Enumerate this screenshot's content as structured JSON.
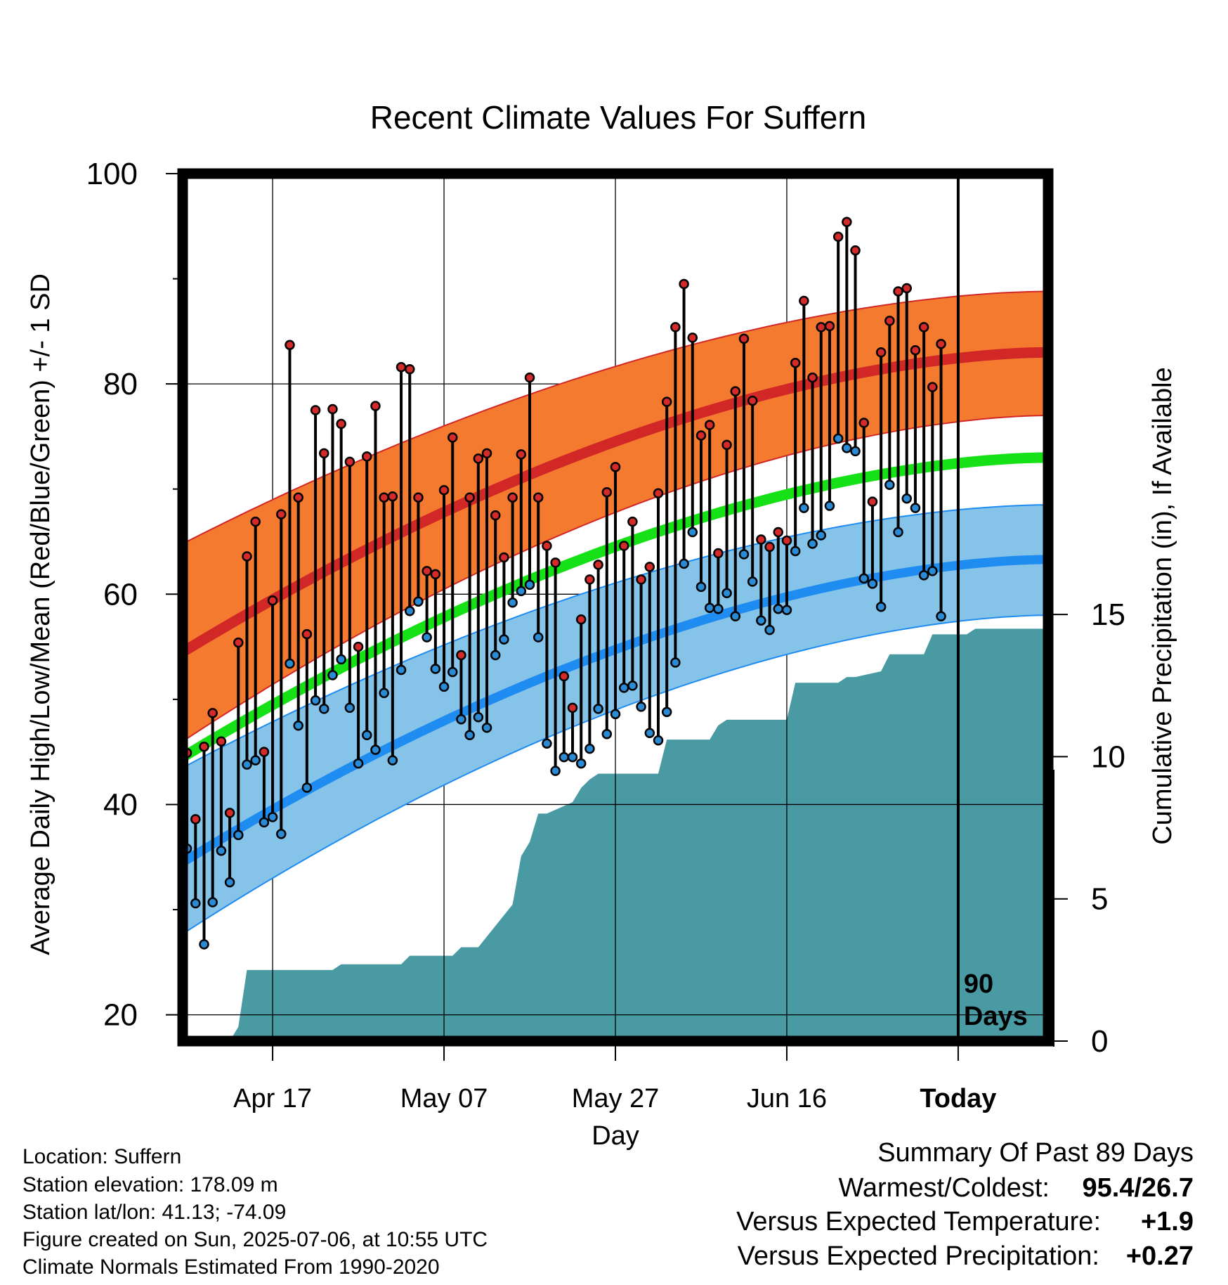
{
  "chart_data": {
    "type": "line",
    "title": "Recent Climate Values For Suffern",
    "xlabel": "Day",
    "ylabel": "Average Daily High/Low/Mean (Red/Blue/Green) +/- 1 SD",
    "y2label": "Cumulative Precipitation (in), If Available",
    "xlim": [
      -10.5,
      90.5
    ],
    "ylim": [
      17.5,
      100
    ],
    "y2lim": [
      0,
      30.5
    ],
    "yticks": [
      "20",
      "40",
      "60",
      "80",
      "100"
    ],
    "y2ticks": [
      "0",
      "5",
      "10",
      "15"
    ],
    "xticks": [
      {
        "x": 0,
        "label": "Apr 17"
      },
      {
        "x": 20,
        "label": "May 07"
      },
      {
        "x": 40,
        "label": "May 27"
      },
      {
        "x": 60,
        "label": "Jun 16"
      },
      {
        "x": 80,
        "label": "Today",
        "bold": true
      }
    ],
    "today_marker": {
      "x": 80,
      "label_line1": "90",
      "label_line2": "Days"
    },
    "grid": true,
    "colors": {
      "high_band": "#f47a30",
      "high_line": "#d22727",
      "mean_line": "#16e016",
      "low_band": "#86c3e9",
      "low_line": "#1e8cf0",
      "precip": "#4a9aa3",
      "high_dot": "#d42a2a",
      "low_dot": "#2a8ad4",
      "warm_value": "#d42a2a",
      "precip_value": "#1ec81e"
    },
    "normals": {
      "x_start": -10.5,
      "x_end": 90.5,
      "high_mean": [
        54.5,
        83.0
      ],
      "high_upper": [
        64.8,
        88.8
      ],
      "high_lower": [
        46.0,
        77.0
      ],
      "mean": [
        44.5,
        73.0
      ],
      "low_mean": [
        34.5,
        63.3
      ],
      "low_upper": [
        43.5,
        68.5
      ],
      "low_lower": [
        27.7,
        58.0
      ]
    },
    "series": [
      {
        "name": "High",
        "x_start": -10,
        "values": [
          44.9,
          38.6,
          45.5,
          48.7,
          46.0,
          39.2,
          55.4,
          63.6,
          66.9,
          45.0,
          59.4,
          67.6,
          83.7,
          69.2,
          56.2,
          77.5,
          73.4,
          77.6,
          76.2,
          72.6,
          55.0,
          73.1,
          77.9,
          69.2,
          69.3,
          81.6,
          81.4,
          69.2,
          62.2,
          61.9,
          69.9,
          74.9,
          54.2,
          69.2,
          72.9,
          73.4,
          67.5,
          63.5,
          69.2,
          73.3,
          80.6,
          69.2,
          64.6,
          63.0,
          52.2,
          49.2,
          57.6,
          61.4,
          62.8,
          69.7,
          72.1,
          64.6,
          66.9,
          61.4,
          62.6,
          69.6,
          78.3,
          85.4,
          89.5,
          84.4,
          75.1,
          76.1,
          63.9,
          74.2,
          79.3,
          84.3,
          78.4,
          65.2,
          64.5,
          65.9,
          65.1,
          82.0,
          87.9,
          80.6,
          85.4,
          85.5,
          94.0,
          95.4,
          92.7,
          76.3,
          68.8,
          83.0,
          86.0,
          88.8,
          89.1,
          83.2,
          85.4,
          79.7,
          83.8
        ]
      },
      {
        "name": "Low",
        "x_start": -10,
        "values": [
          35.8,
          30.6,
          26.7,
          30.7,
          35.6,
          32.6,
          37.1,
          43.8,
          44.2,
          38.3,
          38.8,
          37.2,
          53.4,
          47.5,
          41.6,
          49.9,
          49.1,
          52.3,
          53.8,
          49.2,
          43.9,
          46.6,
          45.2,
          50.6,
          44.2,
          52.8,
          58.4,
          59.3,
          55.9,
          52.9,
          51.2,
          52.6,
          48.1,
          46.6,
          48.3,
          47.3,
          54.2,
          55.7,
          59.2,
          60.3,
          60.9,
          55.9,
          45.8,
          43.2,
          44.5,
          44.5,
          43.9,
          45.3,
          49.1,
          46.7,
          48.6,
          51.1,
          51.3,
          49.3,
          46.8,
          46.1,
          48.8,
          53.5,
          62.9,
          65.9,
          60.7,
          58.7,
          58.6,
          60.1,
          57.9,
          63.8,
          61.2,
          57.5,
          56.6,
          58.6,
          58.5,
          64.1,
          68.2,
          64.8,
          65.6,
          68.4,
          74.8,
          73.9,
          73.6,
          61.5,
          61.0,
          58.8,
          70.4,
          65.9,
          69.1,
          68.2,
          61.8,
          62.2,
          57.9
        ]
      },
      {
        "name": "Cumulative Precipitation",
        "x": [
          -10.5,
          -7,
          -5,
          -4,
          -3,
          7,
          8,
          15,
          16,
          21,
          22,
          24,
          28,
          29,
          30,
          31,
          32,
          35,
          36,
          37,
          38,
          45,
          46,
          51,
          52,
          53,
          54,
          60,
          61,
          66,
          67,
          68,
          71,
          72,
          76,
          77,
          81,
          82,
          90.5
        ],
        "values": [
          0,
          0,
          0,
          0.5,
          2.5,
          2.5,
          2.7,
          2.7,
          3.0,
          3.0,
          3.3,
          3.3,
          4.8,
          6.5,
          7.0,
          8.0,
          8.0,
          8.4,
          8.9,
          9.2,
          9.4,
          9.4,
          10.6,
          10.6,
          11.1,
          11.3,
          11.3,
          11.3,
          12.6,
          12.6,
          12.8,
          12.8,
          13.0,
          13.6,
          13.6,
          14.3,
          14.3,
          14.5,
          14.5
        ],
        "smooth_note": ""
      }
    ]
  },
  "footer": {
    "location": "Location: Suffern",
    "elevation": "Station elevation: 178.09 m",
    "latlon": "Station lat/lon: 41.13; -74.09",
    "created": "Figure created on Sun, 2025-07-06, at 10:55 UTC",
    "normals": "Climate Normals Estimated From 1990-2020"
  },
  "summary": {
    "heading": "Summary Of Past 89 Days",
    "warm_cold_label": "Warmest/Coldest:",
    "warm_cold_value": "95.4/26.7",
    "temp_label": "Versus Expected Temperature:",
    "temp_value": "+1.9",
    "precip_label": "Versus Expected Precipitation:",
    "precip_value": "+0.27"
  }
}
